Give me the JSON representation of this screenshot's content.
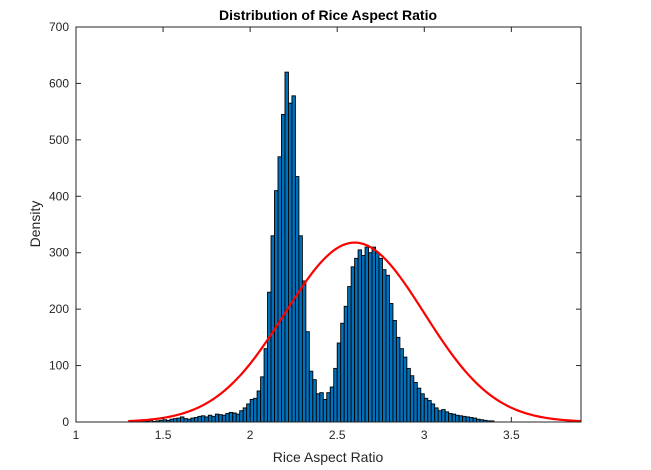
{
  "chart_data": {
    "type": "bar",
    "title": "Distribution of Rice Aspect Ratio",
    "xlabel": "Rice Aspect Ratio",
    "ylabel": "Density",
    "xlim": [
      1,
      3.9
    ],
    "ylim": [
      0,
      700
    ],
    "xticks": [
      1,
      1.5,
      2,
      2.5,
      3,
      3.5
    ],
    "xtick_labels": [
      "1",
      "1.5",
      "2",
      "2.5",
      "3",
      "3.5"
    ],
    "yticks": [
      0,
      100,
      200,
      300,
      400,
      500,
      600,
      700
    ],
    "ytick_labels": [
      "0",
      "100",
      "200",
      "300",
      "400",
      "500",
      "600",
      "700"
    ],
    "grid": false,
    "histogram": {
      "bin_start": 1.3,
      "bin_width": 0.02,
      "values": [
        0,
        0,
        0,
        0,
        2,
        1,
        3,
        1,
        2,
        3,
        4,
        3,
        5,
        6,
        7,
        9,
        6,
        5,
        7,
        8,
        10,
        11,
        9,
        12,
        10,
        14,
        13,
        12,
        15,
        17,
        16,
        14,
        20,
        25,
        32,
        40,
        42,
        55,
        80,
        130,
        230,
        330,
        410,
        470,
        545,
        620,
        565,
        578,
        435,
        330,
        250,
        160,
        90,
        75,
        50,
        52,
        40,
        52,
        62,
        95,
        140,
        175,
        205,
        240,
        275,
        290,
        305,
        295,
        310,
        300,
        310,
        300,
        290,
        270,
        260,
        210,
        180,
        150,
        130,
        115,
        95,
        82,
        70,
        60,
        50,
        42,
        38,
        32,
        25,
        20,
        22,
        18,
        15,
        14,
        12,
        11,
        10,
        9,
        8,
        7,
        5,
        4,
        3,
        2,
        2
      ],
      "color": "#0072BD",
      "edge_color": "#000000"
    },
    "series": [
      {
        "type": "line",
        "color": "#FF0000",
        "curve": "normal",
        "mean": 2.6,
        "sd": 0.4,
        "peak": 318,
        "x_range": [
          1.3,
          3.9
        ]
      }
    ]
  }
}
